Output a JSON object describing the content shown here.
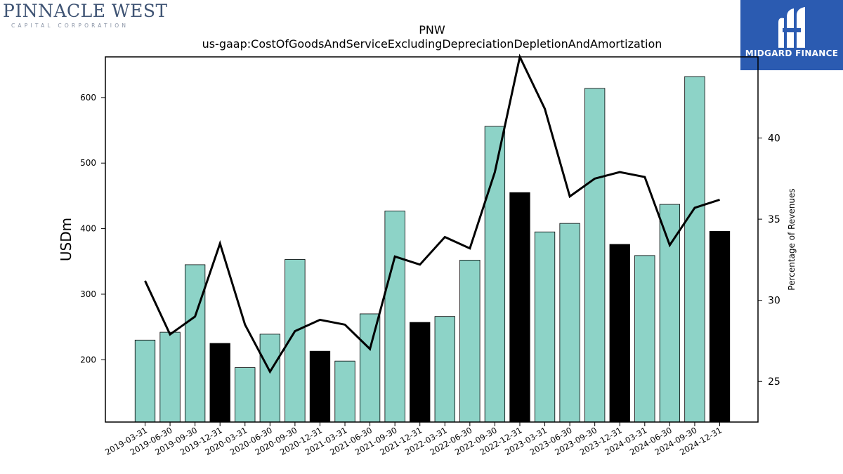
{
  "logos": {
    "left_name": "PINNACLE WEST",
    "left_sub": "CAPITAL CORPORATION",
    "right_label": "MIDGARD FINANCE"
  },
  "colors": {
    "bar_default": "#8dd3c7",
    "bar_highlight": "#000000",
    "line": "#000000",
    "logo_right_bg": "#2b5bb1"
  },
  "chart_data": {
    "type": "bar",
    "title": "PNW",
    "subtitle": "us-gaap:CostOfGoodsAndServiceExcludingDepreciationDepletionAndAmortization",
    "ylabel": "USDm",
    "y2label": "Percentage of Revenues",
    "ylim": [
      105,
      662
    ],
    "y2lim": [
      22.5,
      45.0
    ],
    "yticks": [
      200,
      300,
      400,
      500,
      600
    ],
    "y2ticks": [
      25,
      30,
      35,
      40
    ],
    "categories": [
      "2019-03-31",
      "2019-06-30",
      "2019-09-30",
      "2019-12-31",
      "2020-03-31",
      "2020-06-30",
      "2020-09-30",
      "2020-12-31",
      "2021-03-31",
      "2021-06-30",
      "2021-09-30",
      "2021-12-31",
      "2022-03-31",
      "2022-06-30",
      "2022-09-30",
      "2022-12-31",
      "2023-03-31",
      "2023-06-30",
      "2023-09-30",
      "2023-12-31",
      "2024-03-31",
      "2024-06-30",
      "2024-09-30",
      "2024-12-31"
    ],
    "series": [
      {
        "type": "bar",
        "axis": "left",
        "values": [
          230,
          242,
          345,
          225,
          188,
          239,
          353,
          213,
          198,
          270,
          427,
          257,
          266,
          352,
          556,
          455,
          395,
          408,
          614,
          376,
          359,
          437,
          632,
          396
        ],
        "highlighted": [
          false,
          false,
          false,
          true,
          false,
          false,
          false,
          true,
          false,
          false,
          false,
          true,
          false,
          false,
          false,
          true,
          false,
          false,
          false,
          true,
          false,
          false,
          false,
          true
        ]
      },
      {
        "type": "line",
        "axis": "right",
        "values": [
          31.2,
          27.9,
          29.0,
          33.5,
          28.5,
          25.6,
          28.1,
          28.8,
          28.5,
          27.0,
          32.7,
          32.2,
          33.9,
          33.2,
          37.9,
          45.0,
          41.8,
          36.4,
          37.5,
          37.9,
          37.6,
          33.4,
          35.7,
          36.2
        ]
      }
    ],
    "grid": false,
    "legend": "none"
  }
}
